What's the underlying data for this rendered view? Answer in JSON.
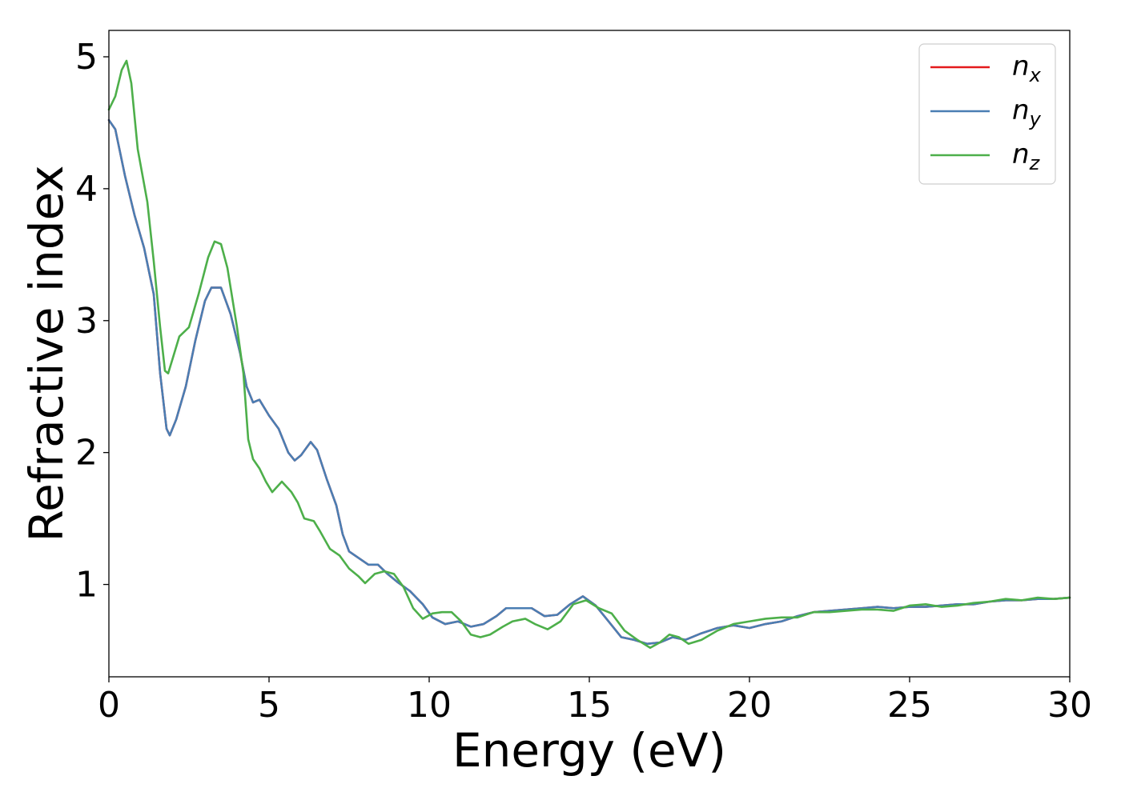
{
  "chart_data": {
    "type": "line",
    "xlabel": "Energy (eV)",
    "ylabel": "Refractive index",
    "xlim": [
      0,
      30
    ],
    "ylim": [
      0.3,
      5.2
    ],
    "x_ticks": [
      0,
      5,
      10,
      15,
      20,
      25,
      30
    ],
    "y_ticks": [
      1,
      2,
      3,
      4,
      5
    ],
    "grid": false,
    "legend_position": "top-right",
    "series": [
      {
        "name": "n",
        "subscript": "x",
        "color": "#e41a1c",
        "points": [
          [
            0,
            4.52
          ],
          [
            0.2,
            4.45
          ],
          [
            0.5,
            4.1
          ],
          [
            0.8,
            3.8
          ],
          [
            1.1,
            3.55
          ],
          [
            1.4,
            3.2
          ],
          [
            1.6,
            2.6
          ],
          [
            1.8,
            2.18
          ],
          [
            1.9,
            2.13
          ],
          [
            2.1,
            2.25
          ],
          [
            2.4,
            2.5
          ],
          [
            2.7,
            2.85
          ],
          [
            3.0,
            3.15
          ],
          [
            3.2,
            3.25
          ],
          [
            3.5,
            3.25
          ],
          [
            3.8,
            3.05
          ],
          [
            4.1,
            2.75
          ],
          [
            4.3,
            2.5
          ],
          [
            4.5,
            2.38
          ],
          [
            4.7,
            2.4
          ],
          [
            5.0,
            2.28
          ],
          [
            5.3,
            2.18
          ],
          [
            5.6,
            2.0
          ],
          [
            5.8,
            1.94
          ],
          [
            6.0,
            1.98
          ],
          [
            6.3,
            2.08
          ],
          [
            6.5,
            2.02
          ],
          [
            6.8,
            1.8
          ],
          [
            7.1,
            1.6
          ],
          [
            7.3,
            1.38
          ],
          [
            7.5,
            1.25
          ],
          [
            7.8,
            1.2
          ],
          [
            8.1,
            1.15
          ],
          [
            8.4,
            1.15
          ],
          [
            8.7,
            1.08
          ],
          [
            9.0,
            1.02
          ],
          [
            9.4,
            0.95
          ],
          [
            9.8,
            0.85
          ],
          [
            10.1,
            0.75
          ],
          [
            10.5,
            0.7
          ],
          [
            10.9,
            0.72
          ],
          [
            11.3,
            0.68
          ],
          [
            11.7,
            0.7
          ],
          [
            12.1,
            0.76
          ],
          [
            12.4,
            0.82
          ],
          [
            12.8,
            0.82
          ],
          [
            13.2,
            0.82
          ],
          [
            13.6,
            0.76
          ],
          [
            14.0,
            0.77
          ],
          [
            14.4,
            0.85
          ],
          [
            14.8,
            0.91
          ],
          [
            15.2,
            0.84
          ],
          [
            15.6,
            0.72
          ],
          [
            16.0,
            0.6
          ],
          [
            16.4,
            0.58
          ],
          [
            16.8,
            0.55
          ],
          [
            17.2,
            0.56
          ],
          [
            17.6,
            0.6
          ],
          [
            18.0,
            0.58
          ],
          [
            18.5,
            0.63
          ],
          [
            19.0,
            0.67
          ],
          [
            19.5,
            0.69
          ],
          [
            20.0,
            0.67
          ],
          [
            20.5,
            0.7
          ],
          [
            21.0,
            0.72
          ],
          [
            21.5,
            0.76
          ],
          [
            22.0,
            0.79
          ],
          [
            22.5,
            0.8
          ],
          [
            23.0,
            0.81
          ],
          [
            23.5,
            0.82
          ],
          [
            24.0,
            0.83
          ],
          [
            24.5,
            0.82
          ],
          [
            25.0,
            0.83
          ],
          [
            25.5,
            0.83
          ],
          [
            26.0,
            0.84
          ],
          [
            26.5,
            0.85
          ],
          [
            27.0,
            0.85
          ],
          [
            27.5,
            0.87
          ],
          [
            28.0,
            0.88
          ],
          [
            28.5,
            0.88
          ],
          [
            29.0,
            0.89
          ],
          [
            29.5,
            0.89
          ],
          [
            30.0,
            0.9
          ]
        ]
      },
      {
        "name": "n",
        "subscript": "y",
        "color": "#4a7eb3",
        "points": [
          [
            0,
            4.52
          ],
          [
            0.2,
            4.45
          ],
          [
            0.5,
            4.1
          ],
          [
            0.8,
            3.8
          ],
          [
            1.1,
            3.55
          ],
          [
            1.4,
            3.2
          ],
          [
            1.6,
            2.6
          ],
          [
            1.8,
            2.18
          ],
          [
            1.9,
            2.13
          ],
          [
            2.1,
            2.25
          ],
          [
            2.4,
            2.5
          ],
          [
            2.7,
            2.85
          ],
          [
            3.0,
            3.15
          ],
          [
            3.2,
            3.25
          ],
          [
            3.5,
            3.25
          ],
          [
            3.8,
            3.05
          ],
          [
            4.1,
            2.75
          ],
          [
            4.3,
            2.5
          ],
          [
            4.5,
            2.38
          ],
          [
            4.7,
            2.4
          ],
          [
            5.0,
            2.28
          ],
          [
            5.3,
            2.18
          ],
          [
            5.6,
            2.0
          ],
          [
            5.8,
            1.94
          ],
          [
            6.0,
            1.98
          ],
          [
            6.3,
            2.08
          ],
          [
            6.5,
            2.02
          ],
          [
            6.8,
            1.8
          ],
          [
            7.1,
            1.6
          ],
          [
            7.3,
            1.38
          ],
          [
            7.5,
            1.25
          ],
          [
            7.8,
            1.2
          ],
          [
            8.1,
            1.15
          ],
          [
            8.4,
            1.15
          ],
          [
            8.7,
            1.08
          ],
          [
            9.0,
            1.02
          ],
          [
            9.4,
            0.95
          ],
          [
            9.8,
            0.85
          ],
          [
            10.1,
            0.75
          ],
          [
            10.5,
            0.7
          ],
          [
            10.9,
            0.72
          ],
          [
            11.3,
            0.68
          ],
          [
            11.7,
            0.7
          ],
          [
            12.1,
            0.76
          ],
          [
            12.4,
            0.82
          ],
          [
            12.8,
            0.82
          ],
          [
            13.2,
            0.82
          ],
          [
            13.6,
            0.76
          ],
          [
            14.0,
            0.77
          ],
          [
            14.4,
            0.85
          ],
          [
            14.8,
            0.91
          ],
          [
            15.2,
            0.84
          ],
          [
            15.6,
            0.72
          ],
          [
            16.0,
            0.6
          ],
          [
            16.4,
            0.58
          ],
          [
            16.8,
            0.55
          ],
          [
            17.2,
            0.56
          ],
          [
            17.6,
            0.6
          ],
          [
            18.0,
            0.58
          ],
          [
            18.5,
            0.63
          ],
          [
            19.0,
            0.67
          ],
          [
            19.5,
            0.69
          ],
          [
            20.0,
            0.67
          ],
          [
            20.5,
            0.7
          ],
          [
            21.0,
            0.72
          ],
          [
            21.5,
            0.76
          ],
          [
            22.0,
            0.79
          ],
          [
            22.5,
            0.8
          ],
          [
            23.0,
            0.81
          ],
          [
            23.5,
            0.82
          ],
          [
            24.0,
            0.83
          ],
          [
            24.5,
            0.82
          ],
          [
            25.0,
            0.83
          ],
          [
            25.5,
            0.83
          ],
          [
            26.0,
            0.84
          ],
          [
            26.5,
            0.85
          ],
          [
            27.0,
            0.85
          ],
          [
            27.5,
            0.87
          ],
          [
            28.0,
            0.88
          ],
          [
            28.5,
            0.88
          ],
          [
            29.0,
            0.89
          ],
          [
            29.5,
            0.89
          ],
          [
            30.0,
            0.9
          ]
        ]
      },
      {
        "name": "n",
        "subscript": "z",
        "color": "#4daf4a",
        "points": [
          [
            0,
            4.6
          ],
          [
            0.2,
            4.7
          ],
          [
            0.4,
            4.9
          ],
          [
            0.55,
            4.97
          ],
          [
            0.7,
            4.8
          ],
          [
            0.9,
            4.3
          ],
          [
            1.2,
            3.9
          ],
          [
            1.4,
            3.45
          ],
          [
            1.6,
            2.95
          ],
          [
            1.75,
            2.62
          ],
          [
            1.85,
            2.6
          ],
          [
            2.0,
            2.72
          ],
          [
            2.2,
            2.88
          ],
          [
            2.5,
            2.95
          ],
          [
            2.8,
            3.2
          ],
          [
            3.1,
            3.48
          ],
          [
            3.3,
            3.6
          ],
          [
            3.5,
            3.58
          ],
          [
            3.7,
            3.4
          ],
          [
            4.0,
            2.95
          ],
          [
            4.2,
            2.6
          ],
          [
            4.35,
            2.1
          ],
          [
            4.5,
            1.95
          ],
          [
            4.7,
            1.88
          ],
          [
            4.9,
            1.78
          ],
          [
            5.1,
            1.7
          ],
          [
            5.4,
            1.78
          ],
          [
            5.7,
            1.7
          ],
          [
            5.9,
            1.62
          ],
          [
            6.1,
            1.5
          ],
          [
            6.4,
            1.48
          ],
          [
            6.6,
            1.4
          ],
          [
            6.9,
            1.27
          ],
          [
            7.2,
            1.22
          ],
          [
            7.5,
            1.12
          ],
          [
            7.8,
            1.06
          ],
          [
            8.0,
            1.01
          ],
          [
            8.3,
            1.08
          ],
          [
            8.6,
            1.1
          ],
          [
            8.9,
            1.08
          ],
          [
            9.2,
            0.98
          ],
          [
            9.5,
            0.82
          ],
          [
            9.8,
            0.74
          ],
          [
            10.1,
            0.78
          ],
          [
            10.4,
            0.79
          ],
          [
            10.7,
            0.79
          ],
          [
            11.0,
            0.72
          ],
          [
            11.3,
            0.62
          ],
          [
            11.6,
            0.6
          ],
          [
            11.9,
            0.62
          ],
          [
            12.3,
            0.68
          ],
          [
            12.6,
            0.72
          ],
          [
            13.0,
            0.74
          ],
          [
            13.3,
            0.7
          ],
          [
            13.7,
            0.66
          ],
          [
            14.1,
            0.72
          ],
          [
            14.5,
            0.85
          ],
          [
            14.9,
            0.88
          ],
          [
            15.3,
            0.82
          ],
          [
            15.7,
            0.78
          ],
          [
            16.1,
            0.65
          ],
          [
            16.5,
            0.58
          ],
          [
            16.9,
            0.52
          ],
          [
            17.2,
            0.56
          ],
          [
            17.5,
            0.62
          ],
          [
            17.8,
            0.6
          ],
          [
            18.1,
            0.55
          ],
          [
            18.5,
            0.58
          ],
          [
            19.0,
            0.65
          ],
          [
            19.5,
            0.7
          ],
          [
            20.0,
            0.72
          ],
          [
            20.5,
            0.74
          ],
          [
            21.0,
            0.75
          ],
          [
            21.5,
            0.75
          ],
          [
            22.0,
            0.79
          ],
          [
            22.5,
            0.79
          ],
          [
            23.0,
            0.8
          ],
          [
            23.5,
            0.81
          ],
          [
            24.0,
            0.81
          ],
          [
            24.5,
            0.8
          ],
          [
            25.0,
            0.84
          ],
          [
            25.5,
            0.85
          ],
          [
            26.0,
            0.83
          ],
          [
            26.5,
            0.84
          ],
          [
            27.0,
            0.86
          ],
          [
            27.5,
            0.87
          ],
          [
            28.0,
            0.89
          ],
          [
            28.5,
            0.88
          ],
          [
            29.0,
            0.9
          ],
          [
            29.5,
            0.89
          ],
          [
            30.0,
            0.9
          ]
        ]
      }
    ]
  }
}
